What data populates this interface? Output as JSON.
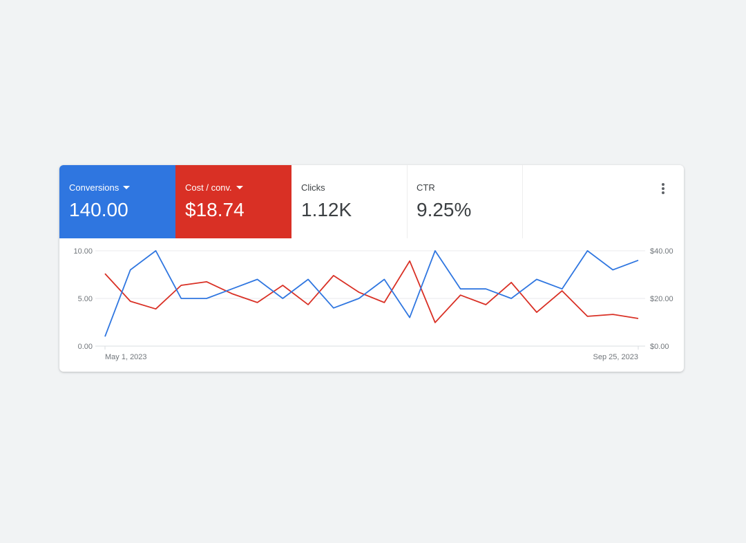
{
  "metrics": [
    {
      "label": "Conversions",
      "value": "140.00",
      "dropdown": true,
      "color": "#2f76e0"
    },
    {
      "label": "Cost / conv.",
      "value": "$18.74",
      "dropdown": true,
      "color": "#d93025"
    },
    {
      "label": "Clicks",
      "value": "1.12K",
      "dropdown": false
    },
    {
      "label": "CTR",
      "value": "9.25%",
      "dropdown": false
    }
  ],
  "menu_icon": "more-vert-icon",
  "chart_data": {
    "type": "line",
    "x_start_label": "May 1, 2023",
    "x_end_label": "Sep 25, 2023",
    "y_left": {
      "ticks": [
        "0.00",
        "5.00",
        "10.00"
      ],
      "range": [
        0,
        10
      ]
    },
    "y_right": {
      "ticks": [
        "$0.00",
        "$20.00",
        "$40.00"
      ],
      "range": [
        0,
        40
      ]
    },
    "grid": true,
    "series": [
      {
        "name": "Conversions",
        "axis": "left",
        "color": "#2f76e0",
        "values": [
          1,
          8,
          10,
          5,
          5,
          6,
          7,
          5,
          7,
          4,
          5,
          7,
          3,
          10,
          6,
          6,
          5,
          7,
          6,
          10,
          8,
          9
        ]
      },
      {
        "name": "Cost / conv.",
        "axis": "right",
        "color": "#d93025",
        "values": [
          30.4,
          18.8,
          15.6,
          25.5,
          27,
          22,
          18.3,
          25.5,
          17.4,
          29.6,
          22.6,
          18.3,
          35.7,
          9.9,
          21.4,
          17.4,
          26.7,
          14.2,
          23.2,
          12.5,
          13.3,
          11.6
        ]
      }
    ]
  }
}
